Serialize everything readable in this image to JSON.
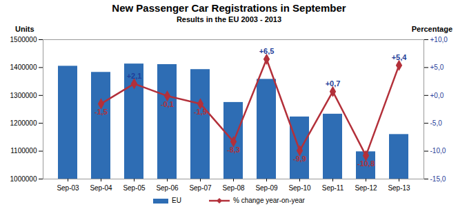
{
  "chart_data": {
    "type": "bar",
    "title": "New Passenger Car Registrations in September",
    "subtitle": "Results in the EU 2003 - 2013",
    "y_label": "Units",
    "y2_label": "Percentage",
    "categories": [
      "Sep-03",
      "Sep-04",
      "Sep-05",
      "Sep-06",
      "Sep-07",
      "Sep-08",
      "Sep-09",
      "Sep-10",
      "Sep-11",
      "Sep-12",
      "Sep-13"
    ],
    "series": [
      {
        "name": "EU",
        "type": "bar",
        "color": "#2e6db4",
        "values": [
          1405000,
          1383000,
          1413000,
          1411000,
          1393000,
          1275000,
          1358000,
          1223000,
          1233000,
          1098000,
          1160000
        ]
      },
      {
        "name": "% change year-on-year",
        "type": "line",
        "axis": "y2",
        "color": "#b3303a",
        "marker": "diamond",
        "data_labels": true,
        "values": [
          null,
          -1.5,
          2.1,
          -0.1,
          -1.5,
          -8.3,
          6.5,
          -9.9,
          0.7,
          -10.8,
          5.4
        ],
        "value_labels": [
          null,
          "-1,5",
          "+2,1",
          "-0,1",
          "-1,5",
          "-8,3",
          "+6,5",
          "-9,9",
          "+0,7",
          "-10,8",
          "+5,4"
        ]
      }
    ],
    "ylim": [
      1000000,
      1500000
    ],
    "yticks": [
      1000000,
      1100000,
      1200000,
      1300000,
      1400000,
      1500000
    ],
    "y2lim": [
      -15,
      10
    ],
    "y2ticks": [
      {
        "value": 10,
        "label": "+10,0"
      },
      {
        "value": 5,
        "label": "+5,0"
      },
      {
        "value": 0,
        "label": "+0,0"
      },
      {
        "value": -5,
        "label": "-5,0"
      },
      {
        "value": -10,
        "label": "-10,0"
      },
      {
        "value": -15,
        "label": "-15,0"
      }
    ],
    "grid": false,
    "legend": "bottom"
  }
}
